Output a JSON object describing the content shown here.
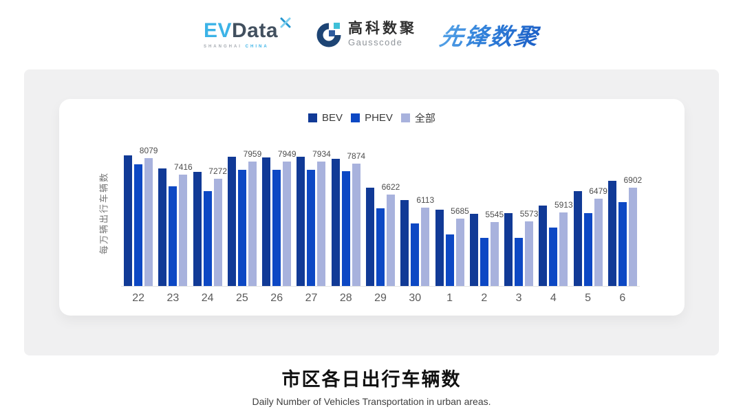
{
  "header": {
    "evdata": {
      "ev": "EV",
      "data": "Data",
      "tagline_left": "SHANGHAI",
      "tagline_right": "CHINA",
      "ev_color": "#3cb3e7",
      "data_color": "#42505f"
    },
    "gausscode": {
      "cn": "高科数聚",
      "en": "Gausscode",
      "mark_navy": "#1d4474",
      "mark_teal": "#3fc0d8",
      "mark_blue": "#2d5b9e"
    },
    "pioneer": {
      "text": "先锋数聚",
      "gradient_from": "#5aa7e8",
      "gradient_to": "#1b5ec6"
    }
  },
  "chart_data": {
    "type": "bar",
    "title": "市区各日出行车辆数",
    "subtitle": "Daily Number of Vehicles Transportation in urban areas.",
    "ylabel": "每万辆出行车辆数",
    "xlabel": "",
    "categories": [
      "22",
      "23",
      "24",
      "25",
      "26",
      "27",
      "28",
      "29",
      "30",
      "1",
      "2",
      "3",
      "4",
      "5",
      "6"
    ],
    "series": [
      {
        "name": "BEV",
        "color": "#113a96",
        "show_value_labels": false,
        "values_estimated": true,
        "values": [
          8200,
          7660,
          7530,
          8140,
          8110,
          8140,
          8050,
          6920,
          6420,
          6030,
          5880,
          5900,
          6210,
          6770,
          7190
        ]
      },
      {
        "name": "PHEV",
        "color": "#0d48c4",
        "show_value_labels": false,
        "values_estimated": true,
        "values": [
          7830,
          6970,
          6760,
          7630,
          7610,
          7620,
          7550,
          6090,
          5490,
          5040,
          4900,
          4910,
          5320,
          5910,
          6340
        ]
      },
      {
        "name": "全部",
        "color": "#a8b2dd",
        "show_value_labels": true,
        "values_estimated": false,
        "values": [
          8079,
          7416,
          7272,
          7959,
          7949,
          7934,
          7874,
          6622,
          6113,
          5685,
          5545,
          5573,
          5913,
          6479,
          6902
        ]
      }
    ],
    "axis": {
      "y_min": 3000,
      "y_max": 8600,
      "gridlines": false,
      "legend_position": "top"
    },
    "colors": {
      "panel_bg": "#f0f0f1",
      "card_bg": "#ffffff",
      "axis_line": "#e3e3e3",
      "tick_text": "#5a5a5a",
      "value_label_text": "#4d4d4d"
    }
  }
}
